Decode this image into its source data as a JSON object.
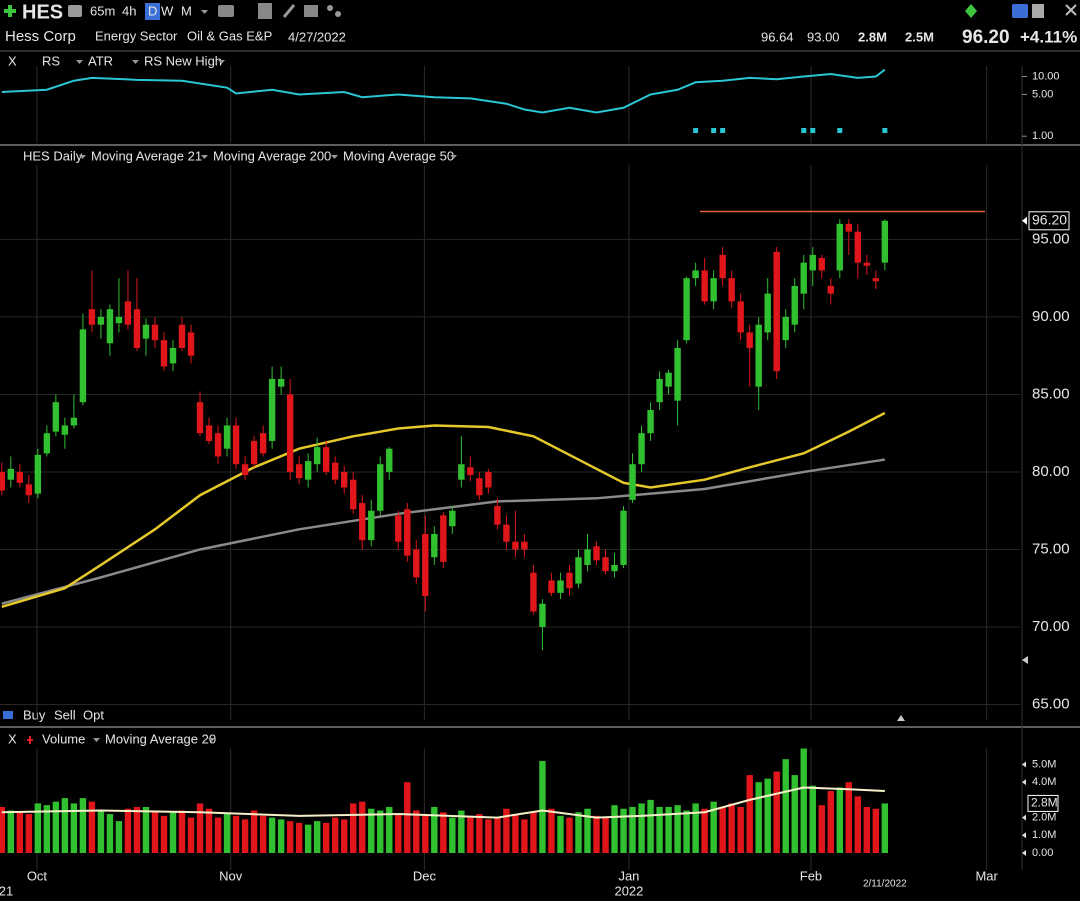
{
  "header": {
    "symbol": "HES",
    "timeframes": [
      "65m",
      "4h",
      "D",
      "W",
      "M"
    ],
    "active_timeframe": "D",
    "company": "Hess Corp",
    "sector": "Energy Sector",
    "industry": "Oil & Gas E&P",
    "date": "4/27/2022",
    "quote": [
      "96.64",
      "93.00",
      "2.8M",
      "2.5M"
    ],
    "last": "96.20",
    "change": "+4.11%",
    "close": "X",
    "trade": [
      "Buy",
      "Sell",
      "Opt"
    ]
  },
  "chart_data": [
    {
      "type": "line",
      "indicators": [
        {
          "name": "RS",
          "color": "#29c6d4"
        },
        {
          "name": "ATR",
          "color": "#d8c02a"
        },
        {
          "name": "RS New High",
          "color": "#29c6d4"
        }
      ],
      "series": [
        {
          "name": "RS",
          "color": "#29c6d4",
          "x": [
            0,
            5,
            8,
            10,
            15,
            20,
            25,
            26,
            30,
            33,
            38,
            40,
            44,
            48,
            52,
            56,
            58,
            60,
            63,
            66,
            69,
            72,
            75,
            77,
            80,
            83,
            86,
            89,
            92,
            95,
            97,
            98
          ],
          "values": [
            5.5,
            6,
            8.5,
            9.5,
            8.8,
            8.5,
            6.5,
            5.2,
            6,
            5,
            5.5,
            4.5,
            5,
            4.5,
            4.3,
            3.5,
            2.8,
            2.5,
            3,
            2.5,
            3,
            5,
            6,
            8,
            8.5,
            9.5,
            9,
            10,
            11,
            9.5,
            10,
            13
          ]
        }
      ],
      "markers": {
        "name": "RS New High",
        "color": "#29c6d4",
        "x": [
          77,
          79,
          80,
          89,
          90,
          93,
          98
        ]
      },
      "yscale": "log",
      "ylim": [
        0.8,
        15
      ],
      "yticks": [
        {
          "value": 10,
          "label": "10.00"
        },
        {
          "value": 5,
          "label": "5.00"
        },
        {
          "value": 1,
          "label": "1.00"
        }
      ]
    },
    {
      "type": "candlestick",
      "indicators": [
        {
          "name": "HES Daily",
          "color": "#30c030"
        },
        {
          "name": "Moving Average 21",
          "color": "#29c6d4"
        },
        {
          "name": "Moving Average 200",
          "color": "#8a8a8a"
        },
        {
          "name": "Moving Average 50",
          "color": "#e5c82a"
        }
      ],
      "up_color": "#30c030",
      "down_color": "#e0161a",
      "xlim": [
        -0.2,
        113
      ],
      "ylim": [
        64,
        99.8
      ],
      "yticks": [
        {
          "value": 95,
          "label": "95.00"
        },
        {
          "value": 90,
          "label": "90.00"
        },
        {
          "value": 85,
          "label": "85.00"
        },
        {
          "value": 80,
          "label": "80.00"
        },
        {
          "value": 75,
          "label": "75.00"
        },
        {
          "value": 70,
          "label": "70.00"
        },
        {
          "value": 65,
          "label": "65.00"
        }
      ],
      "last_price": {
        "value": 96.2,
        "label": "96.20"
      },
      "resistance": {
        "value": 96.8,
        "color": "#e8603c"
      },
      "ohlc": [
        [
          80,
          80.6,
          78.5,
          78.8
        ],
        [
          79.5,
          81,
          79,
          80.2
        ],
        [
          80,
          80.5,
          79,
          79.3
        ],
        [
          79.2,
          79.8,
          78,
          78.5
        ],
        [
          78.6,
          81.5,
          78.3,
          81.1
        ],
        [
          81.2,
          83,
          81,
          82.5
        ],
        [
          82.6,
          85,
          82.3,
          84.5
        ],
        [
          82.4,
          83.5,
          81.5,
          83
        ],
        [
          83,
          85,
          82.8,
          83.5
        ],
        [
          84.5,
          90.2,
          84.3,
          89.2
        ],
        [
          90.5,
          93,
          89,
          89.5
        ],
        [
          89.5,
          90.5,
          88.6,
          90
        ],
        [
          88.3,
          90.8,
          87.5,
          90.5
        ],
        [
          89.6,
          92.5,
          89,
          90
        ],
        [
          91,
          93,
          89.2,
          89.5
        ],
        [
          90.5,
          92.5,
          87.8,
          88
        ],
        [
          88.6,
          89.9,
          87.5,
          89.5
        ],
        [
          89.5,
          90,
          88,
          88.5
        ],
        [
          88.5,
          89,
          86.5,
          86.8
        ],
        [
          87,
          88.5,
          86.5,
          88
        ],
        [
          89.5,
          90,
          87.8,
          88
        ],
        [
          89,
          89.5,
          87,
          87.5
        ],
        [
          84.5,
          85.2,
          82.3,
          82.5
        ],
        [
          83,
          83.5,
          81.8,
          82
        ],
        [
          82.5,
          83,
          80.5,
          81
        ],
        [
          81.5,
          83.5,
          81,
          83
        ],
        [
          83,
          83.5,
          80.2,
          80.5
        ],
        [
          80.5,
          81,
          79.5,
          79.8
        ],
        [
          82,
          82.3,
          80.3,
          80.5
        ],
        [
          82.5,
          83,
          81,
          81.2
        ],
        [
          82,
          86.8,
          81.5,
          86
        ],
        [
          85.5,
          86.8,
          85,
          86
        ],
        [
          85,
          86,
          79.5,
          80
        ],
        [
          80.5,
          81,
          79.2,
          79.6
        ],
        [
          79.5,
          81.2,
          79,
          80.7
        ],
        [
          80.5,
          82.2,
          80,
          81.6
        ],
        [
          81.6,
          82,
          79.8,
          80
        ],
        [
          80.6,
          81,
          79.2,
          79.5
        ],
        [
          80,
          80.4,
          78.6,
          79
        ],
        [
          79.5,
          80,
          77.3,
          77.6
        ],
        [
          78,
          78.5,
          75,
          75.6
        ],
        [
          75.6,
          78.2,
          75.2,
          77.5
        ],
        [
          77.5,
          81,
          77.2,
          80.5
        ],
        [
          80,
          81.6,
          79.5,
          81.5
        ],
        [
          77.2,
          77.5,
          75,
          75.5
        ],
        [
          77.6,
          78,
          74.2,
          74.6
        ],
        [
          75,
          75.6,
          72.8,
          73.2
        ],
        [
          76,
          77.2,
          71,
          72
        ],
        [
          74.5,
          76.5,
          74,
          76
        ],
        [
          77.2,
          77.4,
          73.8,
          74.2
        ],
        [
          76.5,
          77.8,
          76,
          77.5
        ],
        [
          79.5,
          82.3,
          79,
          80.5
        ],
        [
          80.3,
          81,
          79.4,
          79.8
        ],
        [
          79.6,
          80,
          78.2,
          78.5
        ],
        [
          80,
          80.2,
          78.6,
          79
        ],
        [
          77.8,
          78.3,
          76.3,
          76.6
        ],
        [
          76.6,
          77.2,
          75,
          75.5
        ],
        [
          75.5,
          77.5,
          74.5,
          75
        ],
        [
          75.5,
          76,
          74.5,
          75
        ],
        [
          73.5,
          74,
          70.8,
          71
        ],
        [
          70,
          71.8,
          68.5,
          71.5
        ],
        [
          73,
          73.5,
          72,
          72.2
        ],
        [
          72.2,
          73.5,
          71.8,
          73
        ],
        [
          73.5,
          74,
          72,
          72.5
        ],
        [
          72.8,
          75,
          72.5,
          74.5
        ],
        [
          74,
          76,
          73.6,
          75
        ],
        [
          75.2,
          75.5,
          74,
          74.3
        ],
        [
          74.5,
          75,
          73.4,
          73.6
        ],
        [
          73.6,
          74.8,
          73.2,
          74
        ],
        [
          74,
          77.8,
          73.8,
          77.5
        ],
        [
          78.2,
          81.2,
          78,
          80.5
        ],
        [
          80.5,
          83,
          80,
          82.5
        ],
        [
          82.5,
          84.5,
          82,
          84
        ],
        [
          84.5,
          86.5,
          84,
          86
        ],
        [
          85.5,
          86.6,
          85,
          86.4
        ],
        [
          84.6,
          88.5,
          83,
          88
        ],
        [
          88.5,
          92.6,
          88.3,
          92.5
        ],
        [
          92.5,
          93.5,
          92,
          93
        ],
        [
          93,
          93.8,
          90.8,
          91
        ],
        [
          91,
          93,
          90.5,
          92.5
        ],
        [
          94,
          94.5,
          92,
          92.5
        ],
        [
          92.5,
          93,
          90.6,
          91
        ],
        [
          91,
          91.5,
          88.5,
          89
        ],
        [
          89,
          89.5,
          85.5,
          88
        ],
        [
          85.5,
          90,
          84,
          89.5
        ],
        [
          89,
          92.5,
          88.5,
          91.5
        ],
        [
          94.2,
          94.5,
          86,
          86.5
        ],
        [
          88.5,
          90.5,
          88,
          90
        ],
        [
          89.5,
          92.5,
          89,
          92
        ],
        [
          91.5,
          94,
          90.5,
          93.5
        ],
        [
          93,
          94.5,
          92,
          94
        ],
        [
          93.8,
          94,
          92.5,
          93
        ],
        [
          92,
          92.5,
          90.8,
          91.5
        ],
        [
          93,
          96.3,
          92.5,
          96
        ],
        [
          96,
          96.3,
          94,
          95.5
        ],
        [
          95.5,
          96,
          92.5,
          93.5
        ],
        [
          93.5,
          94,
          92.7,
          93.3
        ],
        [
          92.5,
          93,
          91.8,
          92.3
        ],
        [
          93.5,
          96.3,
          93,
          96.2
        ]
      ],
      "lines": [
        {
          "name": "Moving Average 200",
          "color": "#8a8a8a",
          "x": [
            0,
            11,
            22,
            33,
            44,
            55,
            66,
            78,
            89,
            98
          ],
          "values": [
            71.5,
            73.2,
            75,
            76.3,
            77.3,
            78.1,
            78.3,
            78.9,
            80,
            80.8
          ]
        },
        {
          "name": "Moving Average 50",
          "color": "#e5c82a",
          "x": [
            0,
            7,
            11,
            17,
            22,
            28,
            33,
            39,
            44,
            48,
            54,
            59,
            64,
            69,
            72,
            78,
            83,
            89,
            94,
            98
          ],
          "values": [
            71.3,
            72.5,
            74,
            76.3,
            78.5,
            80.3,
            81.5,
            82.3,
            82.8,
            83,
            82.9,
            82.3,
            80.8,
            79.3,
            79,
            79.5,
            80.3,
            81.2,
            82.6,
            83.8
          ]
        }
      ]
    },
    {
      "type": "bar",
      "indicators": [
        {
          "name": "Volume",
          "color": "#e02020"
        },
        {
          "name": "Moving Average 20",
          "color": "#d8d8d8"
        }
      ],
      "ylim": [
        0,
        5.93
      ],
      "yticks": [
        {
          "value": 5,
          "label": "5.0M"
        },
        {
          "value": 4,
          "label": "4.0M"
        },
        {
          "value": 2,
          "label": "2.0M"
        },
        {
          "value": 1,
          "label": "1.0M"
        },
        {
          "value": 0,
          "label": "0.00"
        }
      ],
      "last_volume": {
        "value": 2.8,
        "label": "2.8M"
      },
      "values": [
        2.6,
        2.4,
        2.3,
        2.2,
        2.8,
        2.7,
        2.9,
        3.1,
        2.8,
        3.1,
        2.9,
        2.4,
        2.2,
        1.8,
        2.5,
        2.6,
        2.6,
        2.4,
        2.1,
        2.3,
        2.4,
        2.0,
        2.8,
        2.5,
        2.0,
        2.2,
        2.1,
        1.9,
        2.4,
        2.1,
        2.0,
        1.9,
        1.8,
        1.7,
        1.6,
        1.8,
        1.7,
        2.0,
        1.9,
        2.8,
        2.9,
        2.5,
        2.4,
        2.6,
        2.2,
        4.0,
        2.4,
        2.1,
        2.6,
        2.3,
        2.0,
        2.4,
        2.0,
        2.2,
        1.9,
        2.0,
        2.5,
        2.2,
        1.9,
        2.3,
        5.2,
        2.5,
        2.1,
        2.0,
        2.3,
        2.5,
        2.1,
        2.0,
        2.7,
        2.5,
        2.6,
        2.8,
        3.0,
        2.6,
        2.6,
        2.7,
        2.4,
        2.8,
        2.5,
        2.9,
        2.6,
        2.8,
        2.6,
        4.4,
        4.0,
        4.2,
        4.6,
        5.3,
        4.4,
        5.9,
        3.8,
        2.7,
        3.5,
        3.7,
        4.0,
        3.2,
        2.6,
        2.5,
        2.8
      ],
      "ma": {
        "name": "Moving Average 20",
        "color": "#f5f0c8",
        "x": [
          0,
          11,
          22,
          33,
          44,
          55,
          60,
          66,
          71,
          78,
          83,
          89,
          94,
          98
        ],
        "values": [
          2.3,
          2.4,
          2.3,
          2.1,
          2.2,
          2.0,
          2.4,
          2.0,
          2.1,
          2.3,
          3.0,
          3.7,
          3.6,
          3.5
        ]
      },
      "xticks": [
        {
          "value": 3.9,
          "label": "Oct"
        },
        {
          "value": 25.4,
          "label": "Nov"
        },
        {
          "value": 46.9,
          "label": "Dec"
        },
        {
          "value": 69.6,
          "label": "Jan"
        },
        {
          "value": 89.8,
          "label": "Feb"
        },
        {
          "value": 109.3,
          "label": "Mar"
        }
      ],
      "year_labels": [
        {
          "value": 0.3,
          "label": "21"
        },
        {
          "value": 69.6,
          "label": "2022"
        }
      ],
      "date_label": {
        "value": 98,
        "label": "2/11/2022"
      }
    }
  ]
}
